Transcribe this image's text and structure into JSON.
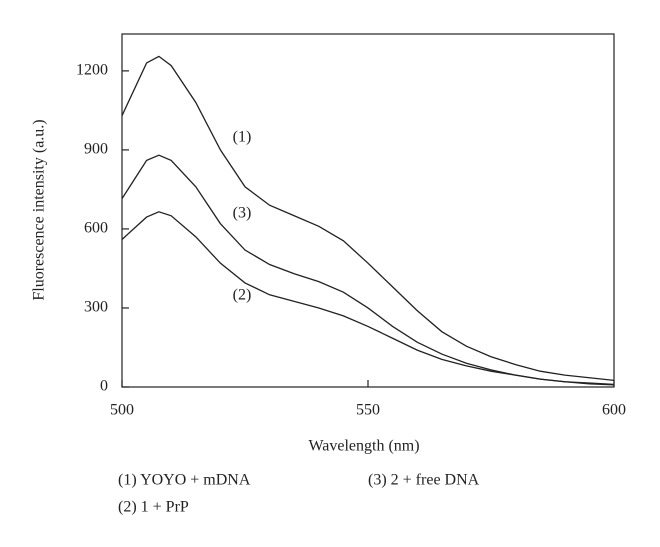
{
  "chart_data": {
    "type": "line",
    "x_label": "Wavelength (nm)",
    "y_label": "Fluorescence intensity (a.u.)",
    "x": [
      500,
      505,
      507.5,
      510,
      515,
      520,
      525,
      530,
      535,
      540,
      545,
      550,
      555,
      560,
      565,
      570,
      575,
      580,
      585,
      590,
      595,
      600
    ],
    "series": [
      {
        "name": "(1)",
        "color": "#222222",
        "values": [
          1030,
          1230,
          1255,
          1220,
          1080,
          900,
          760,
          690,
          650,
          610,
          555,
          470,
          380,
          290,
          210,
          155,
          115,
          85,
          60,
          45,
          35,
          25
        ]
      },
      {
        "name": "(2)",
        "color": "#222222",
        "values": [
          560,
          645,
          665,
          650,
          570,
          470,
          395,
          350,
          325,
          300,
          270,
          230,
          185,
          140,
          105,
          80,
          60,
          45,
          30,
          20,
          12,
          8
        ]
      },
      {
        "name": "(3)",
        "color": "#222222",
        "values": [
          715,
          860,
          880,
          860,
          760,
          620,
          520,
          465,
          430,
          400,
          360,
          300,
          230,
          170,
          125,
          90,
          65,
          45,
          30,
          20,
          15,
          10
        ]
      }
    ],
    "xlim": [
      500,
      600
    ],
    "xticks": [
      500,
      550,
      600
    ],
    "ylim": [
      0,
      1340
    ],
    "yticks": [
      0,
      300,
      600,
      900,
      1200
    ],
    "notes": [
      "(1) YOYO + mDNA",
      "(3) 2 + free DNA",
      "(2) 1 + PrP"
    ]
  }
}
